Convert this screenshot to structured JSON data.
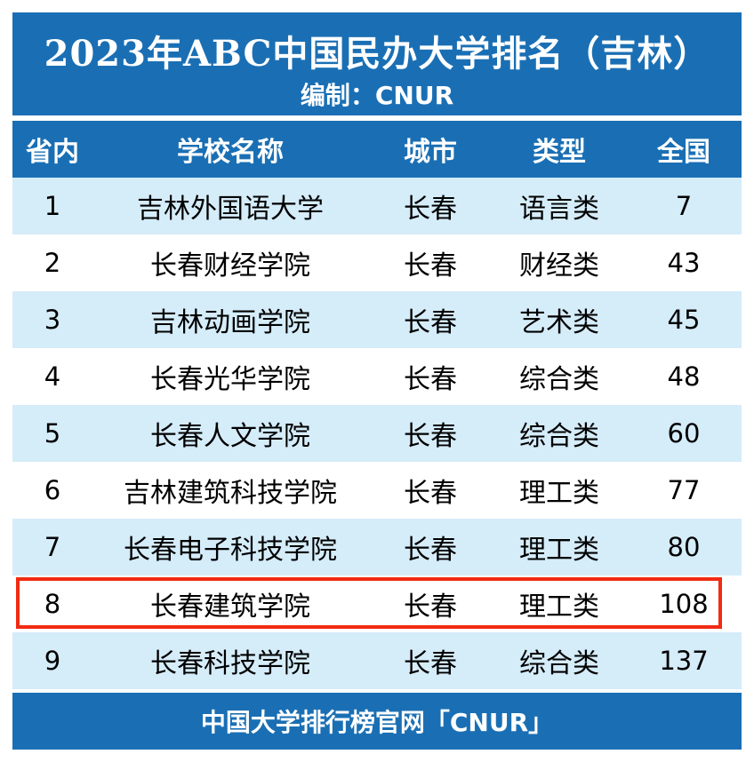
{
  "title": "2023年ABC中国民办大学排名（吉林）",
  "subtitle": "编制：CNUR",
  "columns": [
    "省内",
    "学校名称",
    "城市",
    "类型",
    "全国"
  ],
  "rows": [
    {
      "rank": "1",
      "name": "吉林外国语大学",
      "city": "长春",
      "type": "语言类",
      "national": "7"
    },
    {
      "rank": "2",
      "name": "长春财经学院",
      "city": "长春",
      "type": "财经类",
      "national": "43"
    },
    {
      "rank": "3",
      "name": "吉林动画学院",
      "city": "长春",
      "type": "艺术类",
      "national": "45"
    },
    {
      "rank": "4",
      "name": "长春光华学院",
      "city": "长春",
      "type": "综合类",
      "national": "48"
    },
    {
      "rank": "5",
      "name": "长春人文学院",
      "city": "长春",
      "type": "综合类",
      "national": "60"
    },
    {
      "rank": "6",
      "name": "吉林建筑科技学院",
      "city": "长春",
      "type": "理工类",
      "national": "77"
    },
    {
      "rank": "7",
      "name": "长春电子科技学院",
      "city": "长春",
      "type": "理工类",
      "national": "80"
    },
    {
      "rank": "8",
      "name": "长春建筑学院",
      "city": "长春",
      "type": "理工类",
      "national": "108"
    },
    {
      "rank": "9",
      "name": "长春科技学院",
      "city": "长春",
      "type": "综合类",
      "national": "137"
    }
  ],
  "highlighted_row": 8,
  "footer": "中国大学排行榜官网「CNUR」",
  "colors": {
    "header_blue": "#1a6fb4",
    "stripe_light_blue": "#d5ecf9",
    "highlight_red": "#f12b13"
  }
}
